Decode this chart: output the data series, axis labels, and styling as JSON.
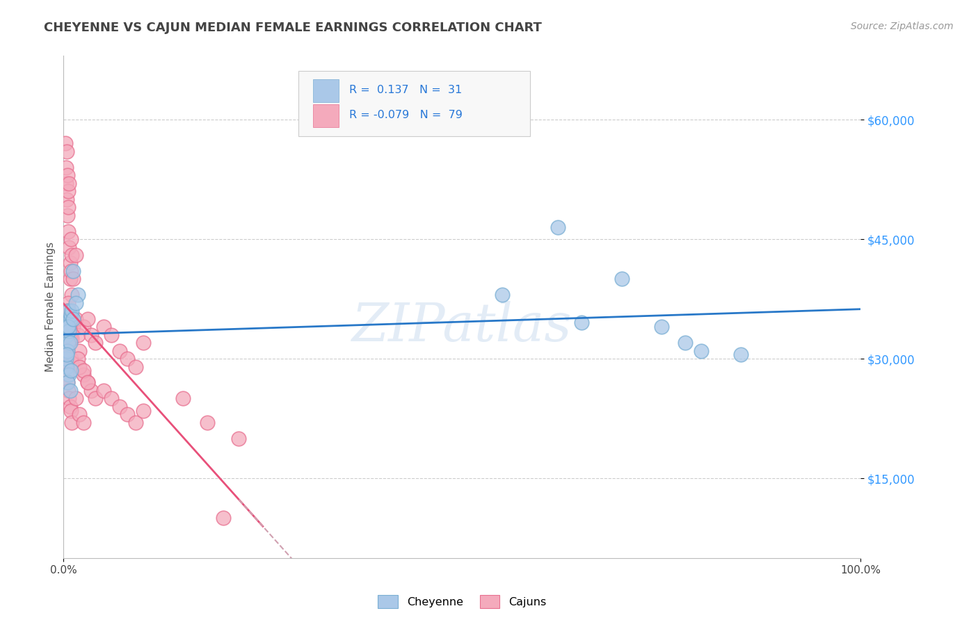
{
  "title": "CHEYENNE VS CAJUN MEDIAN FEMALE EARNINGS CORRELATION CHART",
  "source_text": "Source: ZipAtlas.com",
  "ylabel": "Median Female Earnings",
  "xlim": [
    0.0,
    1.0
  ],
  "ylim": [
    5000,
    68000
  ],
  "yticks": [
    15000,
    30000,
    45000,
    60000
  ],
  "ytick_labels": [
    "$15,000",
    "$30,000",
    "$45,000",
    "$60,000"
  ],
  "xtick_labels": [
    "0.0%",
    "100.0%"
  ],
  "cheyenne_color": "#aac8e8",
  "cajun_color": "#f4aabc",
  "cheyenne_edge": "#7aafd4",
  "cajun_edge": "#e87090",
  "cheyenne_R": 0.137,
  "cheyenne_N": 31,
  "cajun_R": -0.079,
  "cajun_N": 79,
  "watermark": "ZIPatlas",
  "background_color": "#ffffff",
  "grid_color": "#cccccc",
  "blue_line_color": "#2878c8",
  "pink_line_color": "#e8507a",
  "dash_line_color": "#d0a0b0",
  "cheyenne_x": [
    0.012,
    0.018,
    0.005,
    0.006,
    0.008,
    0.004,
    0.003,
    0.009,
    0.006,
    0.007,
    0.003,
    0.005,
    0.004,
    0.007,
    0.005,
    0.008,
    0.006,
    0.01,
    0.015,
    0.012,
    0.004,
    0.009,
    0.008,
    0.62,
    0.7,
    0.75,
    0.8,
    0.85,
    0.55,
    0.65,
    0.78
  ],
  "cheyenne_y": [
    41000,
    38000,
    34500,
    36000,
    35000,
    33000,
    34000,
    35500,
    32000,
    33500,
    30000,
    31000,
    29000,
    28000,
    27000,
    32000,
    34000,
    36000,
    37000,
    35000,
    30500,
    28500,
    26000,
    46500,
    40000,
    34000,
    31000,
    30500,
    38000,
    34500,
    32000
  ],
  "cajun_x": [
    0.002,
    0.003,
    0.004,
    0.003,
    0.004,
    0.005,
    0.006,
    0.005,
    0.006,
    0.007,
    0.006,
    0.007,
    0.008,
    0.009,
    0.01,
    0.008,
    0.009,
    0.01,
    0.012,
    0.015,
    0.003,
    0.004,
    0.005,
    0.006,
    0.007,
    0.008,
    0.009,
    0.01,
    0.012,
    0.015,
    0.003,
    0.004,
    0.005,
    0.006,
    0.007,
    0.008,
    0.009,
    0.01,
    0.018,
    0.02,
    0.025,
    0.03,
    0.035,
    0.04,
    0.05,
    0.06,
    0.07,
    0.08,
    0.09,
    0.1,
    0.025,
    0.03,
    0.035,
    0.04,
    0.05,
    0.06,
    0.07,
    0.08,
    0.09,
    0.1,
    0.018,
    0.02,
    0.025,
    0.03,
    0.15,
    0.18,
    0.2,
    0.003,
    0.004,
    0.005,
    0.006,
    0.007,
    0.008,
    0.009,
    0.01,
    0.015,
    0.02,
    0.025,
    0.22
  ],
  "cajun_y": [
    57000,
    54000,
    56000,
    52000,
    50000,
    53000,
    51000,
    48000,
    49000,
    52000,
    46000,
    44000,
    42000,
    45000,
    43000,
    40000,
    41000,
    38000,
    40000,
    43000,
    36000,
    35000,
    34000,
    37000,
    36000,
    33500,
    35000,
    32500,
    34000,
    35000,
    32000,
    31000,
    30500,
    31500,
    33000,
    32500,
    30000,
    29500,
    33000,
    31000,
    34000,
    35000,
    33000,
    32000,
    34000,
    33000,
    31000,
    30000,
    29000,
    32000,
    28000,
    27000,
    26000,
    25000,
    26000,
    25000,
    24000,
    23000,
    22000,
    23500,
    30000,
    29000,
    28500,
    27000,
    25000,
    22000,
    10000,
    29000,
    28000,
    27000,
    26000,
    25000,
    24000,
    23500,
    22000,
    25000,
    23000,
    22000,
    20000
  ]
}
